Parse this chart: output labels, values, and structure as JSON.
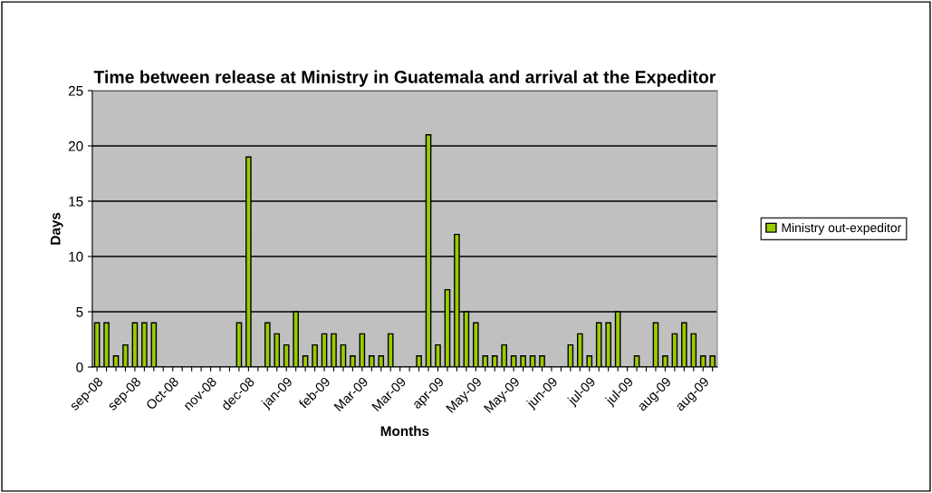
{
  "chart_data": {
    "type": "bar",
    "title": "Time between release at Ministry in Guatemala and arrival at the Expeditor",
    "xlabel": "Months",
    "ylabel": "Days",
    "categories": [
      "sep-08",
      null,
      null,
      null,
      "sep-08",
      null,
      null,
      null,
      "Oct-08",
      null,
      null,
      null,
      "nov-08",
      null,
      null,
      null,
      "dec-08",
      null,
      null,
      null,
      "jan-09",
      null,
      null,
      null,
      "feb-09",
      null,
      null,
      null,
      "Mar-09",
      null,
      null,
      null,
      "Mar-09",
      null,
      null,
      null,
      "apr-09",
      null,
      null,
      null,
      "May-09",
      null,
      null,
      null,
      "May-09",
      null,
      null,
      null,
      "jun-09",
      null,
      null,
      null,
      "jul-09",
      null,
      null,
      null,
      "jul-09",
      null,
      null,
      null,
      "aug-09",
      null,
      null,
      null,
      "aug-09",
      null
    ],
    "series": [
      {
        "name": "Ministry out-expeditor",
        "color": "#99cc00",
        "values": [
          4,
          4,
          1,
          2,
          4,
          4,
          4,
          0,
          0,
          0,
          0,
          0,
          0,
          0,
          0,
          4,
          19,
          0,
          4,
          3,
          2,
          5,
          1,
          2,
          3,
          3,
          2,
          1,
          3,
          1,
          1,
          3,
          0,
          0,
          1,
          21,
          2,
          7,
          12,
          5,
          4,
          1,
          1,
          2,
          1,
          1,
          1,
          1,
          0,
          0,
          2,
          3,
          1,
          4,
          4,
          5,
          0,
          1,
          0,
          4,
          1,
          3,
          4,
          3,
          1,
          1
        ]
      }
    ],
    "ylim": [
      0,
      25
    ],
    "yticks": [
      0,
      5,
      10,
      15,
      20,
      25
    ],
    "grid": "y",
    "legend": "right"
  }
}
